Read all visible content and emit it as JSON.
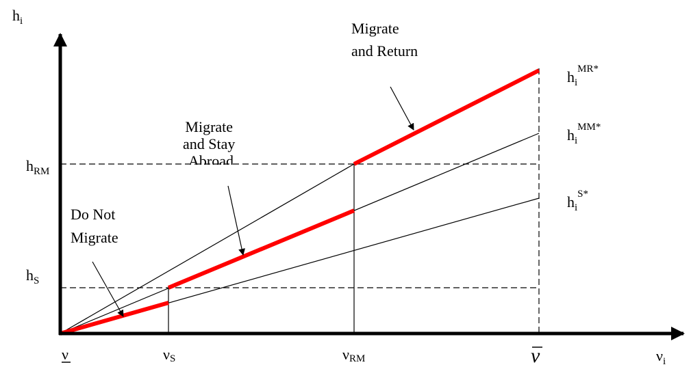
{
  "y_axis": {
    "main": "h",
    "sub": "i"
  },
  "x_axis": {
    "main": "ν",
    "sub": "i"
  },
  "y_ticks": [
    {
      "main": "h",
      "sub": "RM"
    },
    {
      "main": "h",
      "sub": "S"
    }
  ],
  "x_ticks": [
    {
      "main": "ν"
    },
    {
      "main": "ν",
      "sub": "S"
    },
    {
      "main": "ν",
      "sub": "RM"
    },
    {
      "main": "ν"
    }
  ],
  "curves": [
    {
      "main": "h",
      "sub": "i",
      "sup": "MR*"
    },
    {
      "main": "h",
      "sub": "i",
      "sup": "MM*"
    },
    {
      "main": "h",
      "sub": "i",
      "sup": "S*"
    }
  ],
  "annotations": [
    {
      "lines": [
        "Migrate",
        "and Return"
      ]
    },
    {
      "lines": [
        "Migrate",
        "and Stay",
        "Abroad"
      ]
    },
    {
      "lines": [
        "Do Not",
        "Migrate"
      ]
    }
  ]
}
